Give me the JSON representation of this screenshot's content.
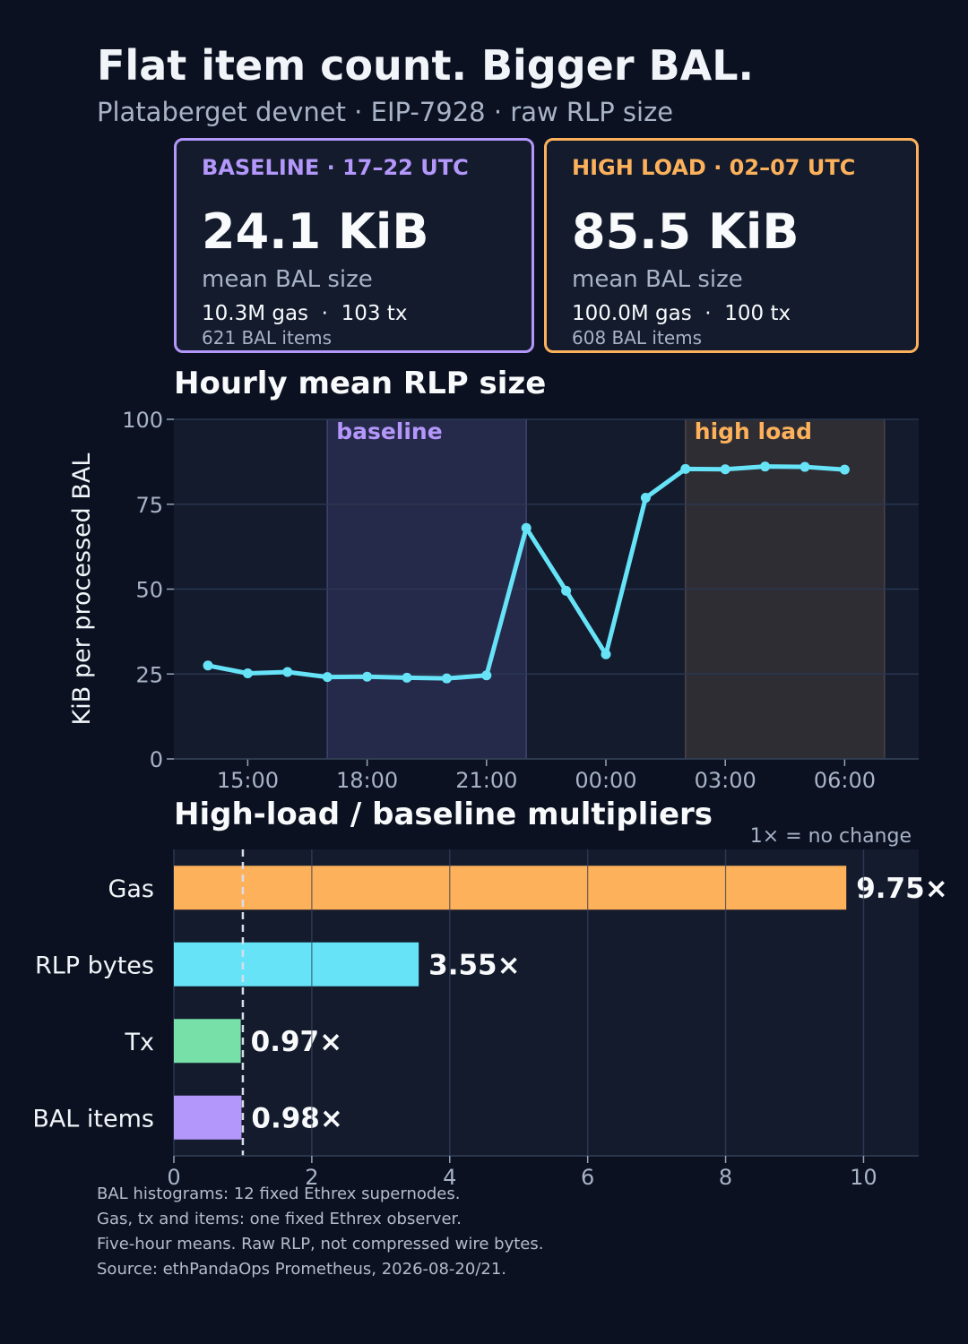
{
  "header": {
    "title": "Flat item count. Bigger BAL.",
    "subtitle": "Plataberget devnet · EIP-7928 · raw RLP size"
  },
  "cards": {
    "baseline": {
      "label": "BASELINE · 17–22 UTC",
      "value": "24.1 KiB",
      "desc": "mean BAL size",
      "stats": "10.3M gas  ·  103 tx",
      "items": "621 BAL items",
      "color": "#b497fb"
    },
    "high": {
      "label": "HIGH LOAD · 02–07 UTC",
      "value": "85.5 KiB",
      "desc": "mean BAL size",
      "stats": "100.0M gas  ·  100 tx",
      "items": "608 BAL items",
      "color": "#fdb15b"
    }
  },
  "chart_data": [
    {
      "type": "line",
      "title": "Hourly mean RLP size",
      "ylabel": "KiB per processed BAL",
      "xlabel": "",
      "ylim": [
        0,
        100
      ],
      "yticks": [
        0,
        25,
        50,
        75,
        100
      ],
      "xticks": [
        "15:00",
        "18:00",
        "21:00",
        "00:00",
        "03:00",
        "06:00"
      ],
      "x": [
        "14:00",
        "15:00",
        "16:00",
        "17:00",
        "18:00",
        "19:00",
        "20:00",
        "21:00",
        "22:00",
        "23:00",
        "00:00",
        "01:00",
        "02:00",
        "03:00",
        "04:00",
        "05:00",
        "06:00"
      ],
      "series": [
        {
          "values": [
            27.5,
            25.2,
            25.6,
            24.1,
            24.2,
            23.9,
            23.7,
            24.6,
            68.0,
            49.5,
            30.8,
            76.9,
            85.4,
            85.3,
            86.1,
            86.0,
            85.2
          ],
          "color": "#67e3f8"
        }
      ],
      "bands": [
        {
          "label": "baseline",
          "start": "17:00",
          "end": "22:00",
          "color": "#b497fb"
        },
        {
          "label": "high load",
          "start": "02:00",
          "end": "07:00",
          "color": "#fdb15b"
        }
      ],
      "grid": true
    },
    {
      "type": "bar",
      "orientation": "horizontal",
      "title": "High-load / baseline multipliers",
      "annotation": "1× = no change",
      "categories": [
        "Gas",
        "RLP bytes",
        "Tx",
        "BAL items"
      ],
      "values": [
        9.75,
        3.55,
        0.97,
        0.98
      ],
      "value_labels": [
        "9.75×",
        "3.55×",
        "0.97×",
        "0.98×"
      ],
      "colors": [
        "#fdb15b",
        "#67e3f8",
        "#77e0a8",
        "#b497fb"
      ],
      "xlim": [
        0,
        10.8
      ],
      "xticks": [
        0,
        2,
        4,
        6,
        8,
        10
      ],
      "reference_line": 1,
      "grid": true
    }
  ],
  "footnotes": [
    "BAL histograms: 12 fixed Ethrex supernodes.",
    "Gas, tx and items: one fixed Ethrex observer.",
    "Five-hour means. Raw RLP, not compressed wire bytes.",
    "Source: ethPandaOps Prometheus, 2026-08-20/21."
  ]
}
